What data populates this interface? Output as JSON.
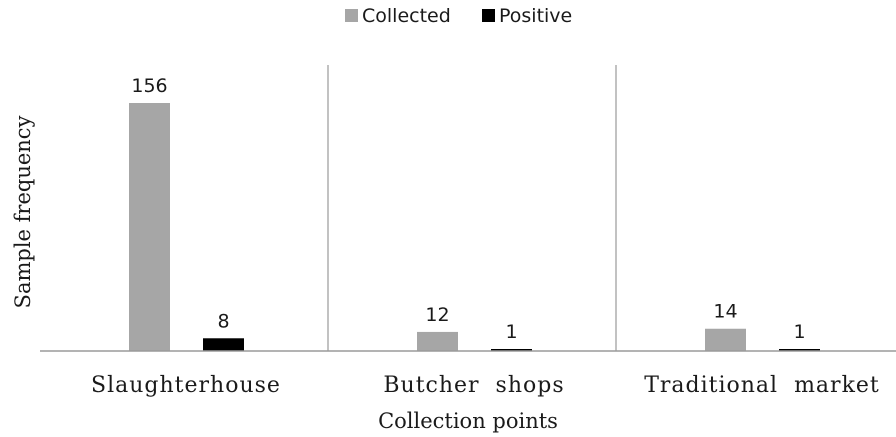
{
  "chart_data": {
    "type": "bar",
    "title": "",
    "xlabel": "Collection points",
    "ylabel": "Sample frequency",
    "categories": [
      "Slaughterhouse",
      "Butcher  shops",
      "Traditional  market"
    ],
    "series": [
      {
        "name": "Collected",
        "values": [
          156,
          12,
          14
        ],
        "color": "#a6a6a6"
      },
      {
        "name": "Positive",
        "values": [
          8,
          1,
          1
        ],
        "color": "#000000"
      }
    ],
    "ylim": [
      0,
      156
    ],
    "grid": false,
    "legend_position": "top-center"
  }
}
